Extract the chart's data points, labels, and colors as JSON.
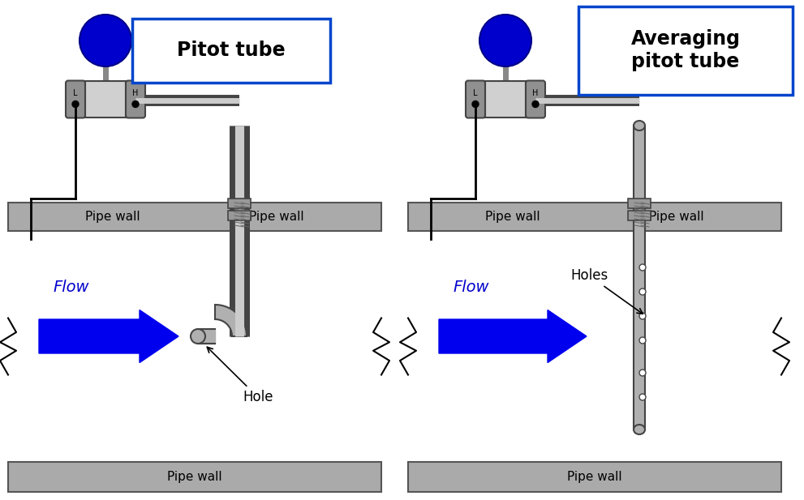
{
  "title_left": "Pitot tube",
  "title_right": "Averaging\npitot tube",
  "label_flow": "Flow",
  "label_hole_left": "Hole",
  "label_holes_right": "Holes",
  "label_pipe_wall": "Pipe wall",
  "bg_color": "#ffffff",
  "pipe_wall_color": "#aaaaaa",
  "pipe_wall_edge": "#555555",
  "tube_color": "#b0b0b0",
  "tube_edge": "#444444",
  "instrument_body_color": "#d0d0d0",
  "instrument_body_edge": "#444444",
  "pod_color": "#909090",
  "blue_circle_color": "#0000cc",
  "flow_arrow_color": "#0000ee",
  "wire_color": "#000000",
  "title_box_edge": "#0044cc",
  "text_color": "#000000",
  "flow_text_color": "#0000cc",
  "fitting_color": "#999999",
  "screw_color": "#666666"
}
